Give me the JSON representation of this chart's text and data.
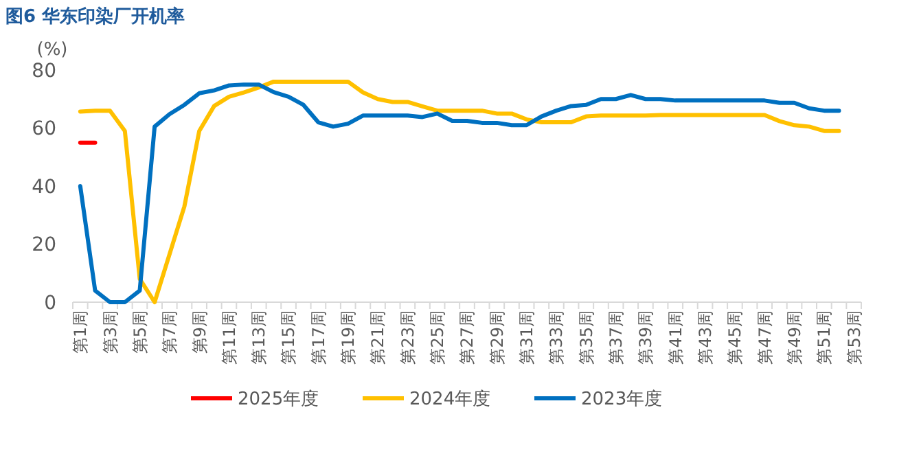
{
  "chart_data": {
    "type": "line",
    "title": "图6 华东印染厂开机率",
    "ylabel": "(%)",
    "categories": [
      "第1周",
      null,
      "第3周",
      null,
      "第5周",
      null,
      "第7周",
      null,
      "第9周",
      null,
      "第11周",
      null,
      "第13周",
      null,
      "第15周",
      null,
      "第17周",
      null,
      "第19周",
      null,
      "第21周",
      null,
      "第23周",
      null,
      "第25周",
      null,
      "第27周",
      null,
      "第29周",
      null,
      "第31周",
      null,
      "第33周",
      null,
      "第35周",
      null,
      "第37周",
      null,
      "第39周",
      null,
      "第41周",
      null,
      "第43周",
      null,
      "第45周",
      null,
      "第47周",
      null,
      "第49周",
      null,
      "第51周",
      null,
      "第53周"
    ],
    "series": [
      {
        "name": "2025年度",
        "color": "#ff0000",
        "values": [
          55,
          55,
          null,
          null,
          null,
          null,
          null,
          null,
          null,
          null,
          null,
          null,
          null,
          null,
          null,
          null,
          null,
          null,
          null,
          null,
          null,
          null,
          null,
          null,
          null,
          null,
          null,
          null,
          null,
          null,
          null,
          null,
          null,
          null,
          null,
          null,
          null,
          null,
          null,
          null,
          null,
          null,
          null,
          null,
          null,
          null,
          null,
          null,
          null,
          null,
          null,
          null,
          null
        ]
      },
      {
        "name": "2024年度",
        "color": "#ffc000",
        "values": [
          65.7,
          66,
          66,
          59,
          8,
          0,
          16.5,
          33,
          59,
          67.6,
          70.8,
          72.3,
          74,
          76,
          76,
          76,
          76,
          76,
          76,
          72.3,
          70,
          69,
          69,
          67.5,
          66,
          66,
          66,
          66,
          65,
          65,
          63,
          62,
          62,
          62,
          64,
          64.3,
          64.3,
          64.3,
          64.3,
          64.5,
          64.5,
          64.5,
          64.5,
          64.5,
          64.5,
          64.5,
          64.5,
          62.4,
          61,
          60.5,
          59,
          59,
          null
        ]
      },
      {
        "name": "2023年度",
        "color": "#0070c0",
        "values": [
          40,
          4,
          0,
          0,
          4,
          60.5,
          64.8,
          68,
          72,
          73,
          74.7,
          75,
          75,
          72.4,
          70.8,
          68,
          62,
          60.5,
          61.5,
          64.3,
          64.3,
          64.3,
          64.3,
          63.8,
          65,
          62.5,
          62.5,
          61.8,
          61.8,
          61,
          61,
          64,
          66,
          67.6,
          68,
          70,
          70,
          71.4,
          70,
          70,
          69.5,
          69.5,
          69.5,
          69.5,
          69.5,
          69.5,
          69.5,
          68.7,
          68.7,
          66.8,
          66,
          66,
          null
        ]
      }
    ],
    "ylim": [
      0,
      80
    ],
    "yticks": [
      0,
      20,
      40,
      60,
      80
    ],
    "legend": "bottom"
  }
}
